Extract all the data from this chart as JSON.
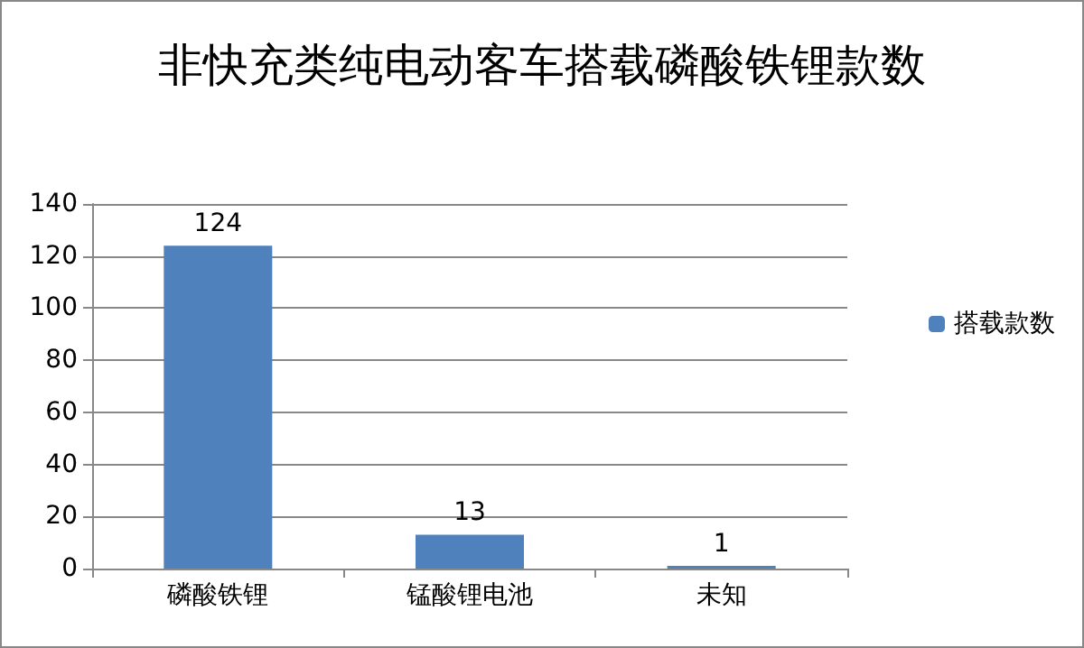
{
  "chart_data": {
    "type": "bar",
    "title": "非快充类纯电动客车搭载磷酸铁锂款数",
    "categories": [
      "磷酸铁锂",
      "锰酸锂电池",
      "未知"
    ],
    "series": [
      {
        "name": "搭载款数",
        "color": "#4f81bd",
        "values": [
          124,
          13,
          1
        ]
      }
    ],
    "ylim": [
      0,
      140
    ],
    "yticks": [
      0,
      20,
      40,
      60,
      80,
      100,
      120,
      140
    ],
    "grid": "y",
    "legend": "right",
    "data_labels": true
  }
}
